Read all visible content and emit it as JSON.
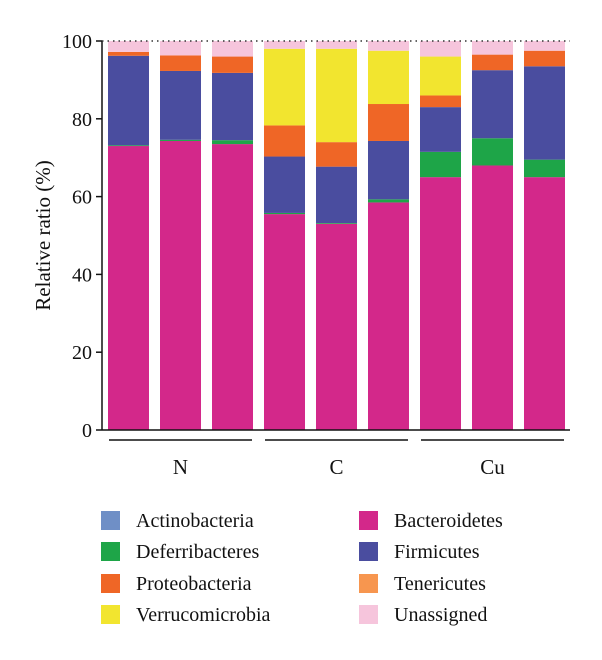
{
  "chart_data": {
    "type": "bar",
    "stacked": true,
    "title": "",
    "xlabel": "",
    "ylabel": "Relative ratio (%)",
    "ylim": [
      0,
      100
    ],
    "yticks": [
      "0",
      "20",
      "40",
      "60",
      "80",
      "100"
    ],
    "grid": false,
    "groups": [
      {
        "label": "N",
        "bars": 3
      },
      {
        "label": "C",
        "bars": 3
      },
      {
        "label": "Cu",
        "bars": 3
      }
    ],
    "series": [
      {
        "name": "Bacteroidetes",
        "color": "#d3288a",
        "values": [
          73.0,
          74.3,
          73.5,
          55.5,
          53.0,
          58.5,
          65.0,
          68.0,
          65.0
        ]
      },
      {
        "name": "Deferribacteres",
        "color": "#1ea548",
        "values": [
          0.2,
          0.3,
          1.0,
          0.3,
          0.2,
          0.8,
          6.5,
          7.0,
          4.5
        ]
      },
      {
        "name": "Firmicutes",
        "color": "#4a4d9f",
        "values": [
          23.0,
          17.7,
          17.3,
          14.5,
          14.5,
          15.0,
          11.5,
          17.5,
          24.0
        ]
      },
      {
        "name": "Actinobacteria",
        "color": "#6f8fc6",
        "values": [
          0.0,
          0.0,
          0.0,
          0.0,
          0.0,
          0.0,
          0.0,
          0.0,
          0.0
        ]
      },
      {
        "name": "Proteobacteria",
        "color": "#ef6626",
        "values": [
          1.0,
          4.0,
          4.2,
          8.0,
          6.3,
          9.5,
          3.0,
          4.0,
          4.0
        ]
      },
      {
        "name": "Tenericutes",
        "color": "#f7964f",
        "values": [
          0.0,
          0.0,
          0.0,
          0.0,
          0.0,
          0.0,
          0.0,
          0.0,
          0.0
        ]
      },
      {
        "name": "Verrucomicrobia",
        "color": "#f2e52f",
        "values": [
          0.0,
          0.0,
          0.0,
          19.7,
          24.0,
          13.7,
          10.0,
          0.0,
          0.0
        ]
      },
      {
        "name": "Unassigned",
        "color": "#f6c5dc",
        "values": [
          2.8,
          3.7,
          4.0,
          2.0,
          2.0,
          2.5,
          4.0,
          3.5,
          2.5
        ]
      }
    ],
    "legend": {
      "placement": "bottom",
      "left_column": [
        "Actinobacteria",
        "Deferribacteres",
        "Proteobacteria",
        "Verrucomicrobia"
      ],
      "right_column": [
        "Bacteroidetes",
        "Firmicutes",
        "Tenericutes",
        "Unassigned"
      ]
    }
  }
}
